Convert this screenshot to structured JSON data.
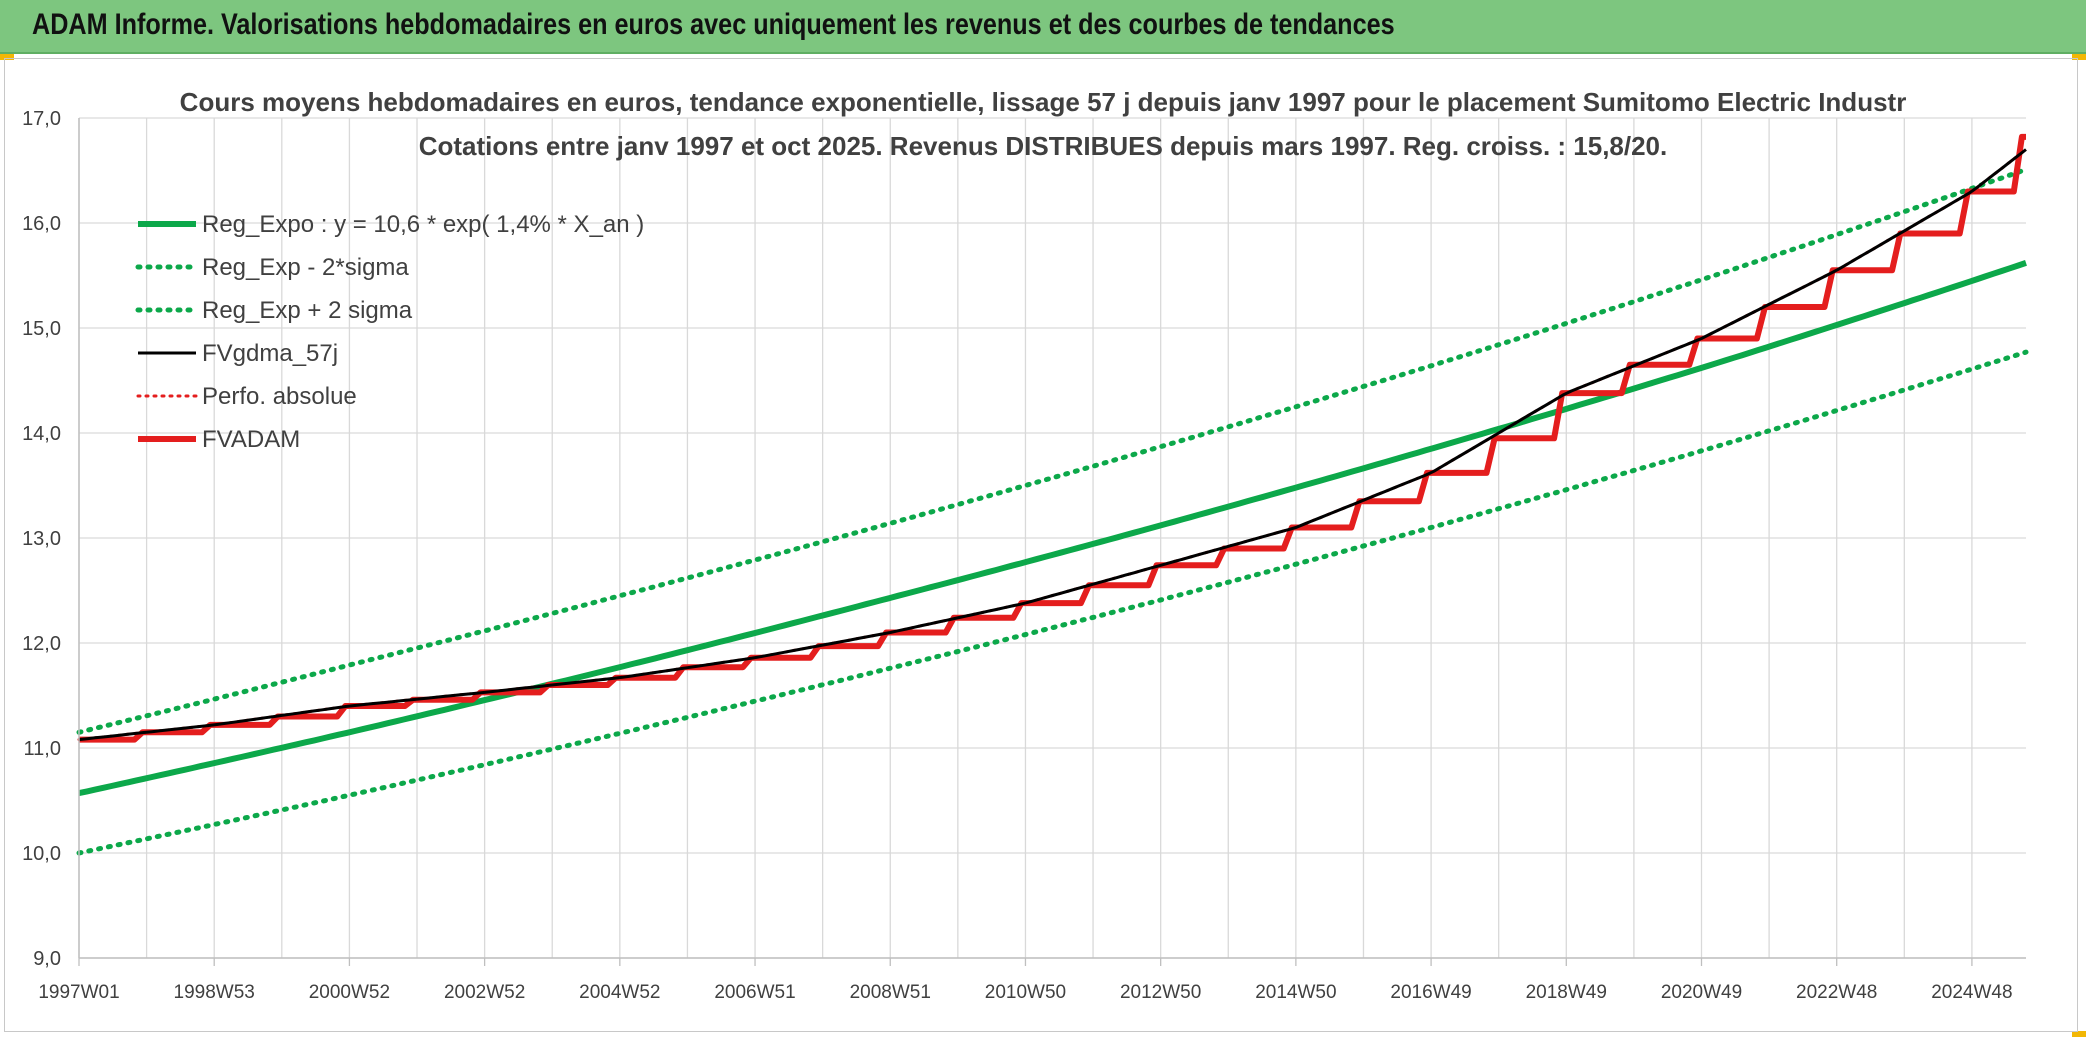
{
  "header": {
    "title": "ADAM Informe. Valorisations hebdomadaires en euros avec uniquement les revenus et des courbes de tendances"
  },
  "colors": {
    "header_bg": "#7dc67f",
    "accent_corner": "#f2b705",
    "reg_green": "#0ca84a",
    "fvgdma_black": "#000000",
    "fvadam_red": "#e41e1e",
    "grid": "#d9d9d9"
  },
  "chart_data": {
    "type": "line",
    "title": "Cours moyens hebdomadaires en euros, tendance exponentielle, lissage 57 j depuis janv 1997 pour le placement Sumitomo Electric Industr",
    "subtitle": "Cotations entre janv 1997 et oct 2025. Revenus DISTRIBUES depuis mars 1997. Reg. croiss. : 15,8/20.",
    "xlabel": "",
    "ylabel": "",
    "ylim": [
      9.0,
      17.0
    ],
    "xlim": [
      1997.0,
      2025.8
    ],
    "grid": true,
    "legend_position": "top-left",
    "y_ticks": [
      "9,0",
      "10,0",
      "11,0",
      "12,0",
      "13,0",
      "14,0",
      "15,0",
      "16,0",
      "17,0"
    ],
    "x_tick_labels": [
      "1997W01",
      "1998W53",
      "2000W52",
      "2002W52",
      "2004W52",
      "2006W51",
      "2008W51",
      "2010W50",
      "2012W50",
      "2014W50",
      "2016W49",
      "2018W49",
      "2020W49",
      "2022W48",
      "2024W48"
    ],
    "x_tick_years": [
      1997.0,
      1999.0,
      2001.0,
      2003.0,
      2005.0,
      2007.0,
      2009.0,
      2011.0,
      2013.0,
      2015.0,
      2017.0,
      2019.0,
      2021.0,
      2023.0,
      2025.0
    ],
    "series": [
      {
        "name": "Reg_Expo : y = 10,6 * exp( 1,4% *  X_an )",
        "style": "solid-green",
        "x": [
          1997.0,
          2001.0,
          2005.0,
          2009.0,
          2013.0,
          2017.0,
          2021.0,
          2025.8
        ],
        "values": [
          10.57,
          11.15,
          11.77,
          12.43,
          13.12,
          13.85,
          14.62,
          15.62
        ]
      },
      {
        "name": "Reg_Exp - 2*sigma",
        "style": "dotted-green",
        "x": [
          1997.0,
          2001.0,
          2005.0,
          2009.0,
          2013.0,
          2017.0,
          2021.0,
          2025.8
        ],
        "values": [
          10.0,
          10.55,
          11.14,
          11.76,
          12.41,
          13.1,
          13.83,
          14.77
        ]
      },
      {
        "name": "Reg_Exp + 2 sigma",
        "style": "dotted-green",
        "x": [
          1997.0,
          2001.0,
          2005.0,
          2009.0,
          2013.0,
          2017.0,
          2021.0,
          2025.8
        ],
        "values": [
          11.15,
          11.79,
          12.45,
          13.14,
          13.87,
          14.64,
          15.46,
          16.51
        ]
      },
      {
        "name": "FVgdma_57j",
        "style": "solid-black",
        "x": [
          1997.0,
          1999.0,
          2001.0,
          2003.0,
          2005.0,
          2007.0,
          2009.0,
          2011.0,
          2013.0,
          2015.0,
          2017.0,
          2019.0,
          2021.0,
          2023.0,
          2025.0,
          2025.8
        ],
        "values": [
          11.08,
          11.22,
          11.4,
          11.53,
          11.67,
          11.86,
          12.1,
          12.38,
          12.74,
          13.1,
          13.62,
          14.38,
          14.9,
          15.55,
          16.3,
          16.7
        ]
      },
      {
        "name": "Perfo. absolue",
        "style": "dotted-red",
        "x": [
          1997.0,
          1999.0,
          2001.0,
          2003.0,
          2005.0,
          2007.0,
          2009.0,
          2011.0,
          2013.0,
          2015.0,
          2017.0,
          2019.0,
          2021.0,
          2023.0,
          2025.0,
          2025.8
        ],
        "values": [
          11.08,
          11.22,
          11.4,
          11.53,
          11.67,
          11.86,
          12.1,
          12.38,
          12.74,
          13.1,
          13.62,
          14.38,
          14.9,
          15.55,
          16.3,
          16.7
        ]
      },
      {
        "name": "FVADAM",
        "style": "step-red",
        "x": [
          1997.0,
          1998.0,
          1999.0,
          2000.0,
          2001.0,
          2002.0,
          2003.0,
          2004.0,
          2005.0,
          2006.0,
          2007.0,
          2008.0,
          2009.0,
          2010.0,
          2011.0,
          2012.0,
          2013.0,
          2014.0,
          2015.0,
          2016.0,
          2017.0,
          2018.0,
          2019.0,
          2020.0,
          2021.0,
          2022.0,
          2023.0,
          2024.0,
          2025.0,
          2025.8
        ],
        "values": [
          11.08,
          11.15,
          11.22,
          11.3,
          11.4,
          11.46,
          11.53,
          11.6,
          11.67,
          11.77,
          11.86,
          11.97,
          12.1,
          12.24,
          12.38,
          12.55,
          12.74,
          12.9,
          13.1,
          13.35,
          13.62,
          13.95,
          14.38,
          14.65,
          14.9,
          15.2,
          15.55,
          15.9,
          16.3,
          16.82
        ]
      }
    ]
  }
}
